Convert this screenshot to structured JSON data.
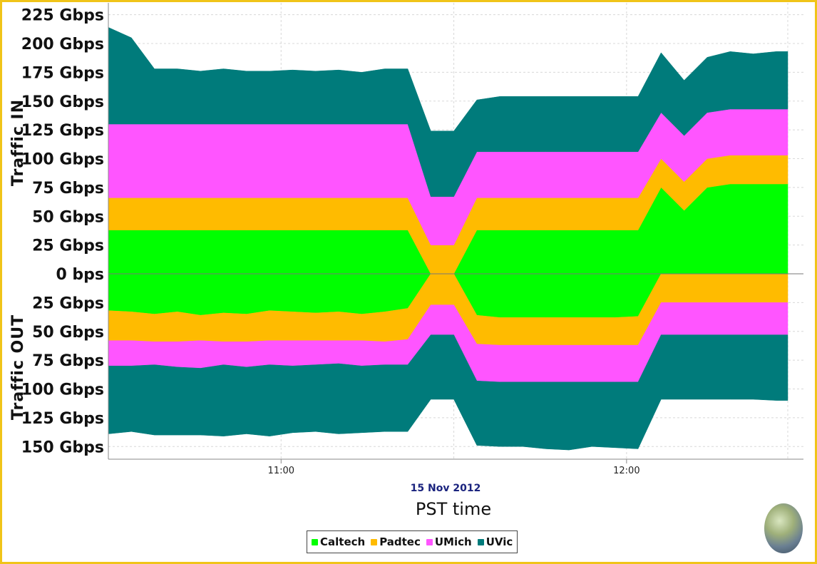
{
  "chart_data": {
    "type": "area",
    "title": "",
    "xlabel": "PST time",
    "date_label": "15 Nov 2012",
    "ylabel_in": "Traffic IN",
    "ylabel_out": "Traffic OUT",
    "x_ticks": [
      "11:00",
      "12:00"
    ],
    "x_tick_minutes": [
      60,
      120
    ],
    "y_ticks_in": [
      "0 bps",
      "25 Gbps",
      "50 Gbps",
      "75 Gbps",
      "100 Gbps",
      "125 Gbps",
      "150 Gbps",
      "175 Gbps",
      "200 Gbps",
      "225 Gbps"
    ],
    "y_ticks_out": [
      "25 Gbps",
      "50 Gbps",
      "75 Gbps",
      "100 Gbps",
      "125 Gbps",
      "150 Gbps"
    ],
    "ylim_in": [
      0,
      225
    ],
    "ylim_out": [
      0,
      152
    ],
    "x_range_minutes": [
      30,
      148
    ],
    "grid": true,
    "legend_position": "bottom-center",
    "x_minutes": [
      30,
      34,
      38,
      42,
      46,
      50,
      54,
      58,
      62,
      66,
      70,
      74,
      78,
      82,
      86,
      90,
      94,
      98,
      102,
      106,
      110,
      114,
      118,
      122,
      126,
      130,
      134,
      138,
      142,
      146,
      148
    ],
    "series_in": [
      {
        "name": "Caltech",
        "color": "#00ff00",
        "values": [
          38,
          38,
          38,
          38,
          38,
          38,
          38,
          38,
          38,
          38,
          38,
          38,
          38,
          38,
          0,
          0,
          38,
          38,
          38,
          38,
          38,
          38,
          38,
          38,
          75,
          55,
          75,
          78,
          78,
          78,
          78
        ]
      },
      {
        "name": "Padtec",
        "color": "#ffbb00",
        "values": [
          28,
          28,
          28,
          28,
          28,
          28,
          28,
          28,
          28,
          28,
          28,
          28,
          28,
          28,
          25,
          25,
          28,
          28,
          28,
          28,
          28,
          28,
          28,
          28,
          25,
          25,
          25,
          25,
          25,
          25,
          25
        ]
      },
      {
        "name": "UMich",
        "color": "#ff55ff",
        "values": [
          64,
          64,
          64,
          64,
          64,
          64,
          64,
          64,
          64,
          64,
          64,
          64,
          64,
          64,
          42,
          42,
          40,
          40,
          40,
          40,
          40,
          40,
          40,
          40,
          40,
          40,
          40,
          40,
          40,
          40,
          40
        ]
      },
      {
        "name": "UVic",
        "color": "#007b7b",
        "values": [
          84,
          75,
          48,
          48,
          46,
          48,
          46,
          46,
          47,
          46,
          47,
          45,
          48,
          48,
          57,
          57,
          45,
          48,
          48,
          48,
          48,
          48,
          48,
          48,
          52,
          48,
          48,
          50,
          48,
          50,
          50
        ]
      }
    ],
    "series_out": [
      {
        "name": "Caltech",
        "values": [
          32,
          33,
          35,
          33,
          36,
          34,
          35,
          32,
          33,
          34,
          33,
          35,
          33,
          30,
          0,
          0,
          36,
          38,
          38,
          38,
          38,
          38,
          38,
          37,
          0,
          0,
          0,
          0,
          0,
          0,
          0
        ]
      },
      {
        "name": "Padtec",
        "values": [
          26,
          25,
          24,
          26,
          22,
          25,
          24,
          26,
          25,
          24,
          25,
          23,
          26,
          27,
          27,
          27,
          25,
          24,
          24,
          24,
          24,
          24,
          24,
          25,
          25,
          25,
          25,
          25,
          25,
          25,
          25
        ]
      },
      {
        "name": "UMich",
        "values": [
          22,
          22,
          20,
          22,
          24,
          20,
          22,
          21,
          22,
          21,
          20,
          22,
          20,
          22,
          26,
          26,
          32,
          32,
          32,
          32,
          32,
          32,
          32,
          32,
          28,
          28,
          28,
          28,
          28,
          28,
          28
        ]
      },
      {
        "name": "UVic",
        "values": [
          59,
          57,
          61,
          59,
          58,
          62,
          58,
          62,
          58,
          58,
          61,
          58,
          58,
          58,
          56,
          56,
          56,
          56,
          56,
          58,
          59,
          56,
          57,
          58,
          56,
          56,
          56,
          56,
          56,
          57,
          57
        ]
      }
    ]
  }
}
